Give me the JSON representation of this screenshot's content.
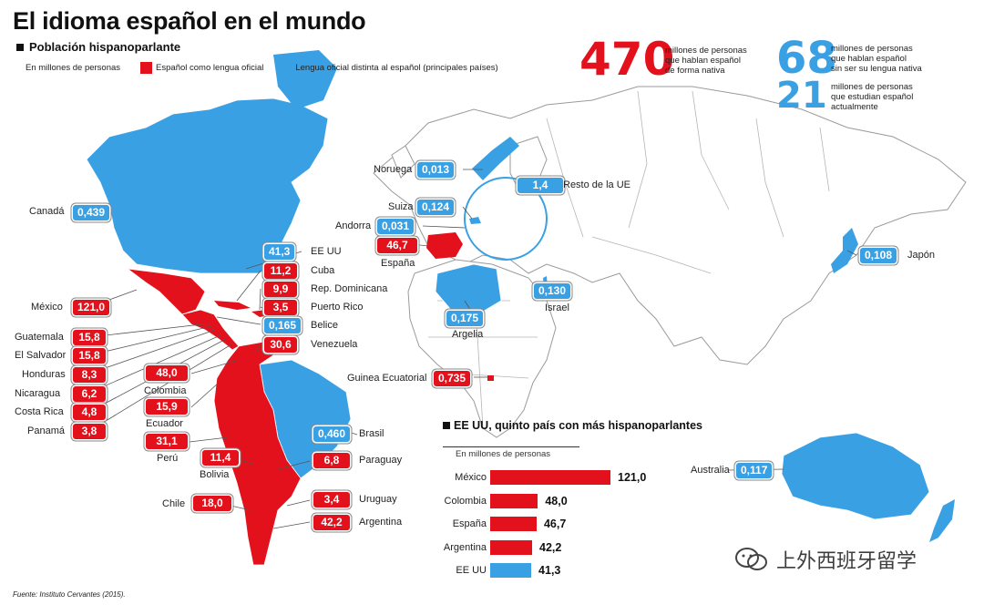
{
  "title": "El idioma español en el mundo",
  "subtitle": "Población hispanoparlante",
  "legend": {
    "unit": "En millones de personas",
    "red_label": "Español como lengua oficial",
    "blue_label": "Lengua oficial distinta al español (principales países)",
    "red_color": "#e3111b",
    "blue_color": "#3aa0e4"
  },
  "stats": {
    "native_value": "470",
    "native_text": [
      "millones de personas",
      "que hablan español",
      "de forma nativa"
    ],
    "nonnative_value": "68",
    "nonnative_text": [
      "millones de personas",
      "que hablan español",
      "sin ser su lengua nativa"
    ],
    "students_value": "21",
    "students_text": [
      "millones de personas",
      "que estudian español",
      "actualmente"
    ]
  },
  "countries": {
    "canada": {
      "name": "Canadá",
      "value": "0,439"
    },
    "eeuu": {
      "name": "EE UU",
      "value": "41,3"
    },
    "cuba": {
      "name": "Cuba",
      "value": "11,2"
    },
    "repdom": {
      "name": "Rep. Dominicana",
      "value": "9,9"
    },
    "puertorico": {
      "name": "Puerto Rico",
      "value": "3,5"
    },
    "belice": {
      "name": "Belice",
      "value": "0,165"
    },
    "venezuela": {
      "name": "Venezuela",
      "value": "30,6"
    },
    "mexico": {
      "name": "México",
      "value": "121,0"
    },
    "guatemala": {
      "name": "Guatemala",
      "value": "15,8"
    },
    "elsalvador": {
      "name": "El Salvador",
      "value": "15,8"
    },
    "honduras": {
      "name": "Honduras",
      "value": "8,3"
    },
    "nicaragua": {
      "name": "Nicaragua",
      "value": "6,2"
    },
    "costarica": {
      "name": "Costa Rica",
      "value": "4,8"
    },
    "panama": {
      "name": "Panamá",
      "value": "3,8"
    },
    "colombia": {
      "name": "Colombia",
      "value": "48,0"
    },
    "ecuador": {
      "name": "Ecuador",
      "value": "15,9"
    },
    "peru": {
      "name": "Perú",
      "value": "31,1"
    },
    "bolivia": {
      "name": "Bolivia",
      "value": "11,4"
    },
    "brasil": {
      "name": "Brasil",
      "value": "0,460"
    },
    "paraguay": {
      "name": "Paraguay",
      "value": "6,8"
    },
    "chile": {
      "name": "Chile",
      "value": "18,0"
    },
    "uruguay": {
      "name": "Uruguay",
      "value": "3,4"
    },
    "argentina": {
      "name": "Argentina",
      "value": "42,2"
    },
    "noruega": {
      "name": "Noruega",
      "value": "0,013"
    },
    "suiza": {
      "name": "Suiza",
      "value": "0,124"
    },
    "andorra": {
      "name": "Andorra",
      "value": "0,031"
    },
    "espana": {
      "name": "España",
      "value": "46,7"
    },
    "restoue": {
      "name": "Resto de la UE",
      "value": "1,4"
    },
    "argelia": {
      "name": "Argelia",
      "value": "0,175"
    },
    "israel": {
      "name": "Israel",
      "value": "0,130"
    },
    "guinea": {
      "name": "Guinea Ecuatorial",
      "value": "0,735"
    },
    "japon": {
      "name": "Japón",
      "value": "0,108"
    },
    "australia": {
      "name": "Australia",
      "value": "0,117"
    }
  },
  "chart_data": {
    "type": "bar",
    "title": "EE UU, quinto país con más hispanoparlantes",
    "ylabel": "En millones de personas",
    "categories": [
      "México",
      "Colombia",
      "España",
      "Argentina",
      "EE UU"
    ],
    "values": [
      121.0,
      48.0,
      46.7,
      42.2,
      41.3
    ],
    "value_labels": [
      "121,0",
      "48,0",
      "46,7",
      "42,2",
      "41,3"
    ],
    "colors": [
      "#e3111b",
      "#e3111b",
      "#e3111b",
      "#e3111b",
      "#3aa0e4"
    ],
    "xlim": [
      0,
      121.0
    ],
    "orientation": "horizontal"
  },
  "source": "Fuente: Instituto Cervantes (2015).",
  "watermark": "上外西班牙留学"
}
